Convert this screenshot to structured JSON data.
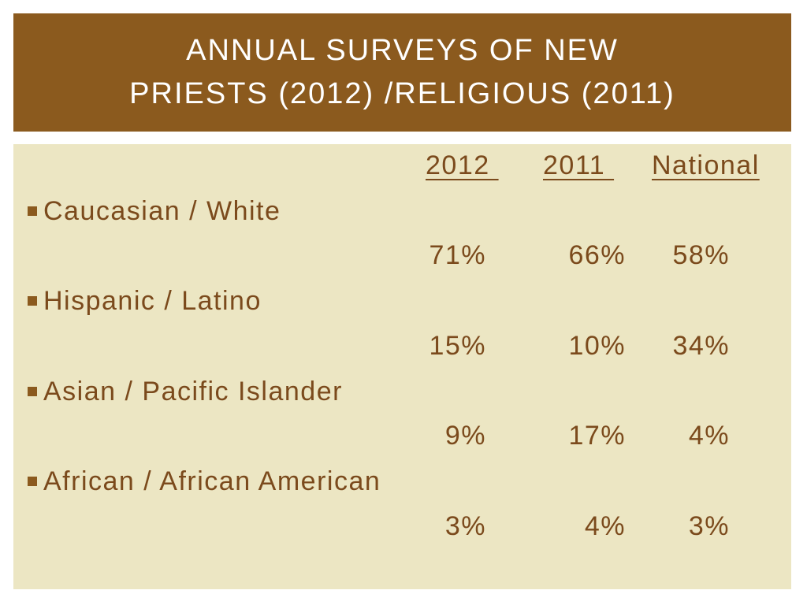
{
  "title": {
    "line1": "ANNUAL SURVEYS OF NEW",
    "line2": "PRIESTS (2012) /RELIGIOUS (2011)"
  },
  "columns": [
    "2012 ",
    "2011 ",
    "National"
  ],
  "rows": [
    {
      "label": "Caucasian / White",
      "values": [
        "71%",
        "66%",
        "58%"
      ]
    },
    {
      "label": "Hispanic / Latino",
      "values": [
        "15%",
        "10%",
        "34%"
      ]
    },
    {
      "label": "Asian / Pacific Islander",
      "values": [
        "9%",
        "17%",
        "4%"
      ]
    },
    {
      "label": "African / African American",
      "values": [
        "3%",
        "4%",
        "3%"
      ]
    }
  ],
  "colors": {
    "title_bar": "#8b5a1e",
    "content_bg": "#ece6c3",
    "text": "#7b4a1c"
  }
}
